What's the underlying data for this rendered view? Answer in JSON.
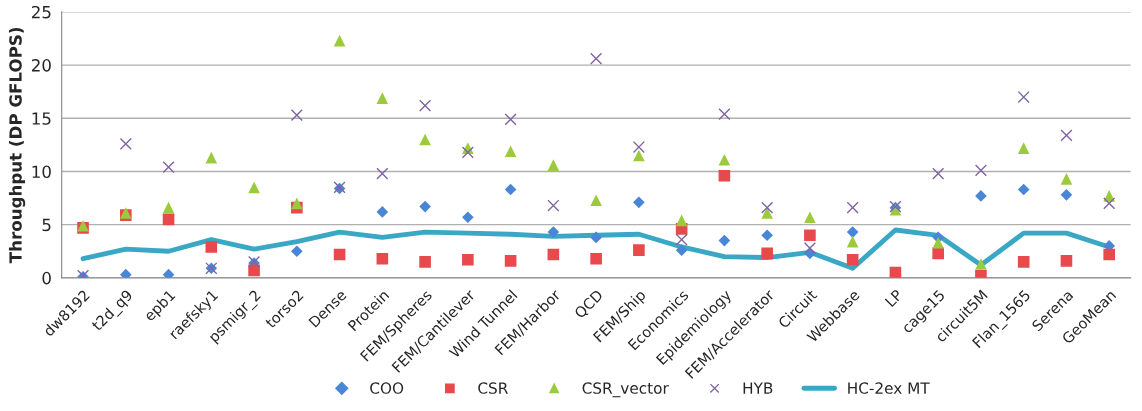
{
  "chart_data": {
    "type": "scatter",
    "ylabel": "Throughput (DP GFLOPS)",
    "categories": [
      "dw8192",
      "t2d_q9",
      "epb1",
      "raefsky1",
      "psmigr_2",
      "torso2",
      "Dense",
      "Protein",
      "FEM/Spheres",
      "FEM/Cantilever",
      "Wind Tunnel",
      "FEM/Harbor",
      "QCD",
      "FEM/Ship",
      "Economics",
      "Epidemiology",
      "FEM/Accelerator",
      "Circuit",
      "Webbase",
      "LP",
      "cage15",
      "circuit5M",
      "Flan_1565",
      "Serena",
      "GeoMean"
    ],
    "series": [
      {
        "name": "COO",
        "marker": "diamond",
        "color": "#4a86d6",
        "values": [
          0.1,
          0.3,
          0.3,
          0.9,
          1.4,
          2.5,
          8.4,
          6.2,
          6.7,
          5.7,
          8.3,
          4.3,
          3.8,
          7.1,
          2.6,
          3.5,
          4.0,
          2.3,
          4.3,
          6.6,
          3.8,
          7.7,
          8.3,
          7.8,
          3.0
        ]
      },
      {
        "name": "CSR",
        "marker": "square",
        "color": "#e8494c",
        "values": [
          4.7,
          5.9,
          5.5,
          2.9,
          0.7,
          6.6,
          2.2,
          1.8,
          1.5,
          1.7,
          1.6,
          2.2,
          1.8,
          2.6,
          4.6,
          9.6,
          2.3,
          4.0,
          1.7,
          0.5,
          2.3,
          0.2,
          1.5,
          1.6,
          2.2
        ]
      },
      {
        "name": "CSR_vector",
        "marker": "triangle",
        "color": "#9bcb3c",
        "values": [
          4.9,
          6.1,
          6.6,
          11.3,
          8.5,
          7.0,
          22.3,
          16.9,
          13.0,
          12.2,
          11.9,
          10.6,
          7.3,
          11.5,
          5.4,
          11.1,
          6.1,
          5.7,
          3.4,
          6.4,
          3.3,
          1.3,
          12.2,
          9.3,
          7.7
        ]
      },
      {
        "name": "HYB",
        "marker": "cross",
        "color": "#8064a2",
        "values": [
          0.2,
          12.6,
          10.4,
          0.9,
          1.5,
          15.3,
          8.5,
          9.8,
          16.2,
          11.8,
          14.9,
          6.8,
          20.6,
          12.3,
          3.6,
          15.4,
          6.6,
          2.8,
          6.6,
          6.7,
          9.8,
          10.1,
          17.0,
          13.4,
          7.0
        ]
      },
      {
        "name": "HC-2ex MT",
        "type": "line",
        "marker": "none",
        "color": "#3aa8c4",
        "values": [
          1.8,
          2.7,
          2.5,
          3.6,
          2.7,
          3.4,
          4.3,
          3.8,
          4.3,
          4.2,
          4.1,
          3.9,
          4.0,
          4.1,
          2.9,
          2.0,
          1.9,
          2.4,
          0.9,
          4.5,
          4.0,
          1.2,
          4.2,
          4.2,
          2.9
        ]
      }
    ],
    "ylim": [
      0,
      25
    ],
    "yticks": [
      0,
      5,
      10,
      15,
      20,
      25
    ],
    "grid": "y",
    "legend": "bottom"
  }
}
